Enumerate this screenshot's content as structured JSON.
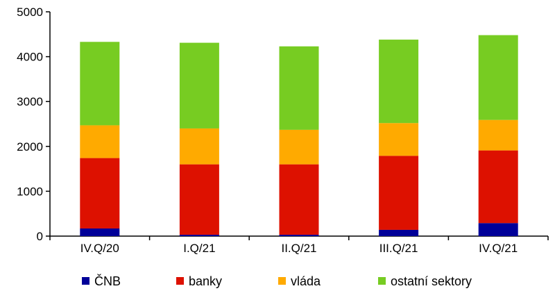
{
  "chart_data": {
    "type": "bar",
    "stacked": true,
    "categories": [
      "IV.Q/20",
      "I.Q/21",
      "II.Q/21",
      "III.Q/21",
      "IV.Q/21"
    ],
    "series": [
      {
        "name": "ČNB",
        "color": "#000099",
        "values": [
          170,
          30,
          30,
          140,
          290
        ]
      },
      {
        "name": "banky",
        "color": "#dd1100",
        "values": [
          1570,
          1570,
          1570,
          1650,
          1620
        ]
      },
      {
        "name": "vláda",
        "color": "#ffaa00",
        "values": [
          730,
          800,
          770,
          730,
          680
        ]
      },
      {
        "name": "ostatní sektory",
        "color": "#77cc22",
        "values": [
          1860,
          1910,
          1860,
          1860,
          1890
        ]
      }
    ],
    "ylim": [
      0,
      5000
    ],
    "yticks": [
      0,
      1000,
      2000,
      3000,
      4000,
      5000
    ],
    "title": "",
    "xlabel": "",
    "ylabel": "",
    "grid": false,
    "legend_position": "bottom"
  }
}
